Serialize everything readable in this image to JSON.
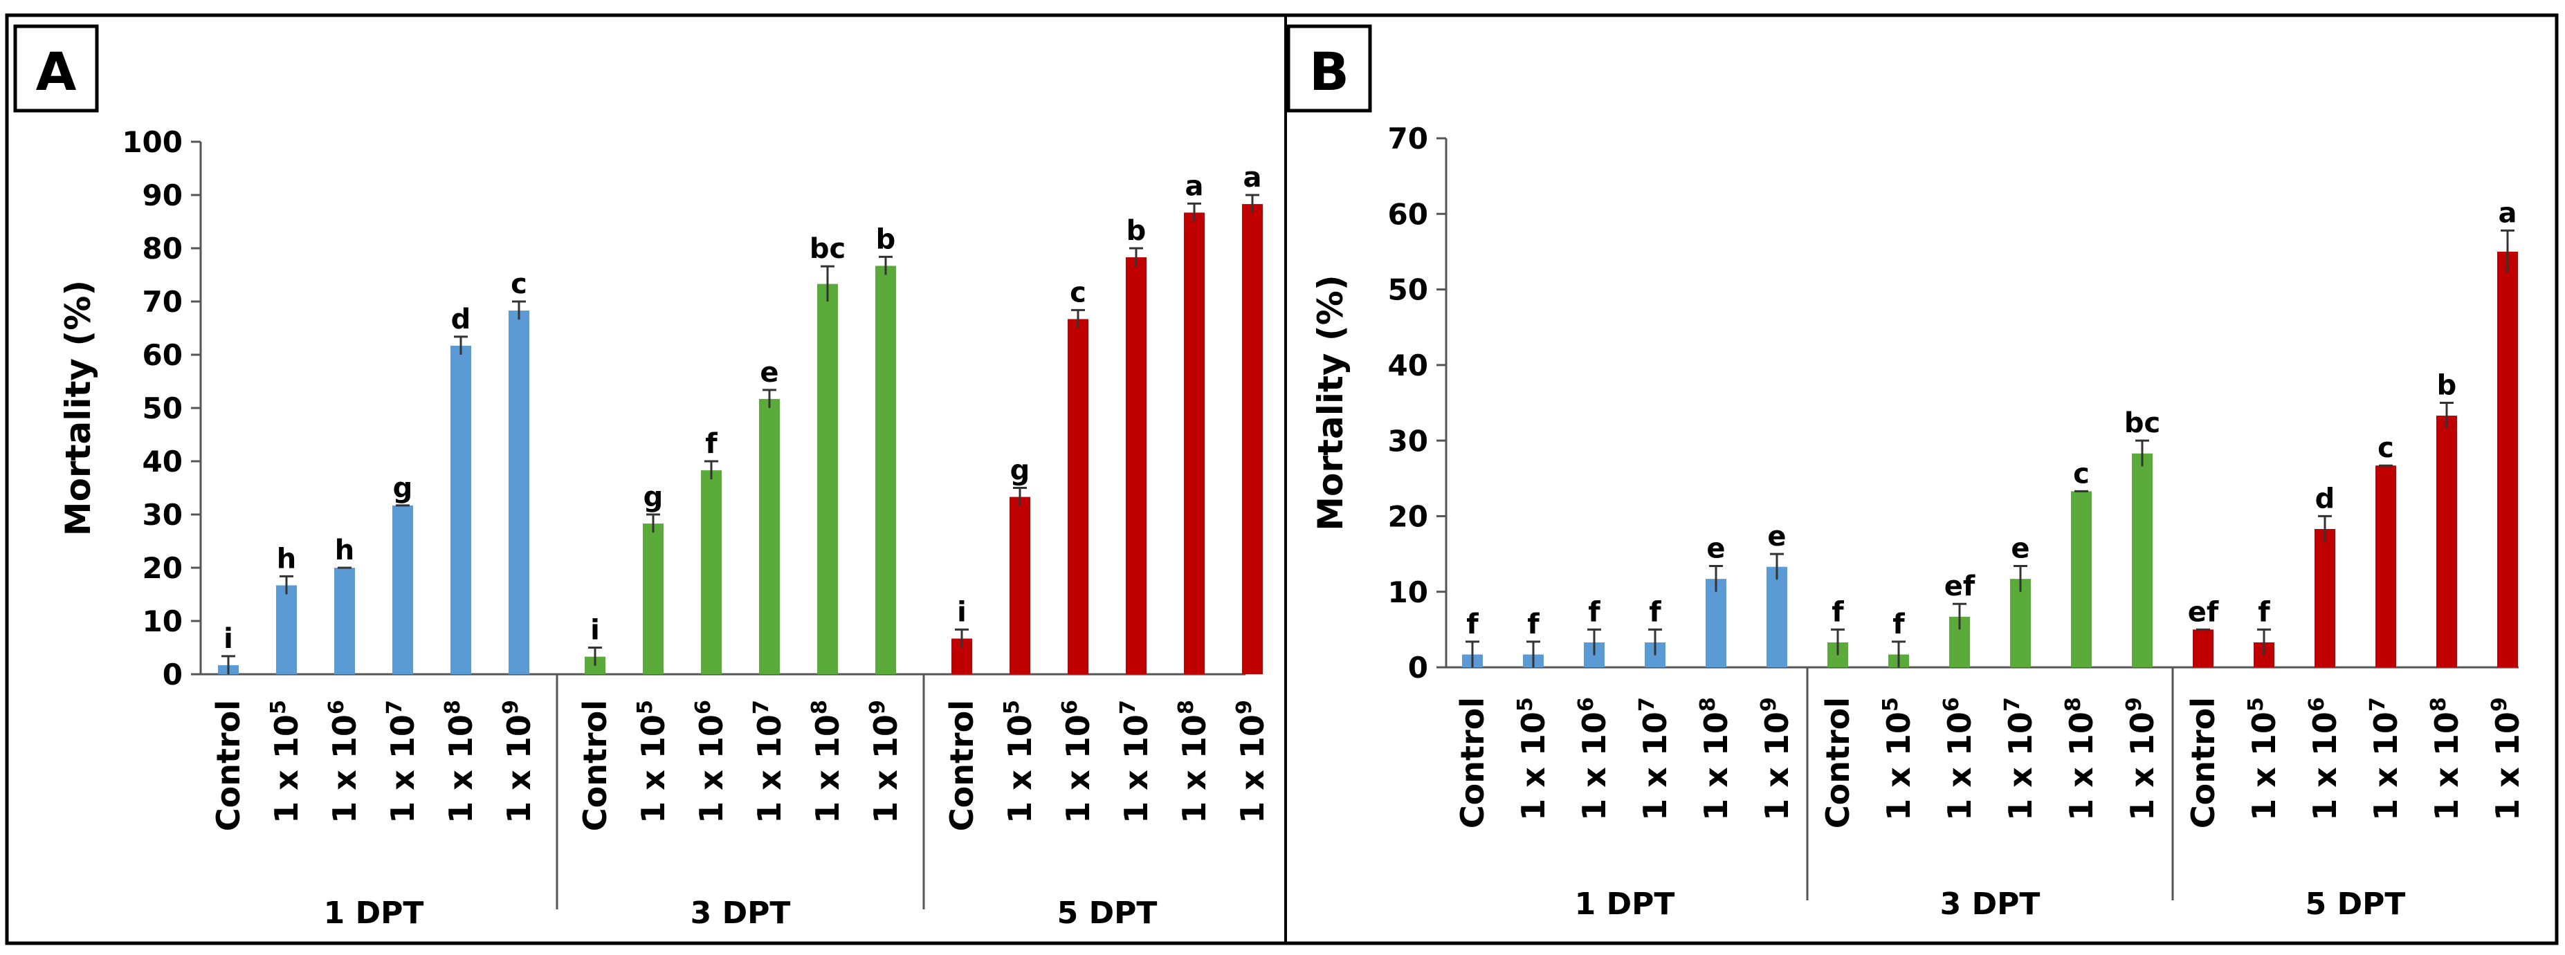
{
  "chart_data": [
    {
      "panel": "A",
      "type": "bar",
      "ylabel": "Mortality (%)",
      "ylim": [
        0,
        100
      ],
      "yticks": [
        0,
        10,
        20,
        30,
        40,
        50,
        60,
        70,
        80,
        90,
        100
      ],
      "categories": [
        "Control",
        "1 x 10^5",
        "1 x 10^6",
        "1 x 10^7",
        "1 x 10^8",
        "1 x 10^9"
      ],
      "groups": [
        {
          "name": "1 DPT",
          "color": "#5b9bd5",
          "values": [
            1.7,
            16.7,
            20.0,
            31.7,
            61.7,
            68.3
          ],
          "errors": [
            1.7,
            1.7,
            0.0,
            0.0,
            1.7,
            1.7
          ],
          "letters": [
            "i",
            "h",
            "h",
            "g",
            "d",
            "c"
          ]
        },
        {
          "name": "3 DPT",
          "color": "#5aab3a",
          "values": [
            3.3,
            28.3,
            38.3,
            51.7,
            73.3,
            76.7
          ],
          "errors": [
            1.7,
            1.7,
            1.7,
            1.7,
            3.3,
            1.7
          ],
          "letters": [
            "i",
            "g",
            "f",
            "e",
            "bc",
            "b"
          ]
        },
        {
          "name": "5 DPT",
          "color": "#c00000",
          "values": [
            6.7,
            33.3,
            66.7,
            78.3,
            86.7,
            88.3
          ],
          "errors": [
            1.7,
            1.7,
            1.7,
            1.7,
            1.7,
            1.7
          ],
          "letters": [
            "i",
            "g",
            "c",
            "b",
            "a",
            "a"
          ]
        }
      ]
    },
    {
      "panel": "B",
      "type": "bar",
      "ylabel": "Mortality (%)",
      "ylim": [
        0,
        70
      ],
      "yticks": [
        0,
        10,
        20,
        30,
        40,
        50,
        60,
        70
      ],
      "categories": [
        "Control",
        "1 x 10^5",
        "1 x 10^6",
        "1 x 10^7",
        "1 x 10^8",
        "1 x 10^9"
      ],
      "groups": [
        {
          "name": "1 DPT",
          "color": "#5b9bd5",
          "values": [
            1.7,
            1.7,
            3.3,
            3.3,
            11.7,
            13.3
          ],
          "errors": [
            1.7,
            1.7,
            1.7,
            1.7,
            1.7,
            1.7
          ],
          "letters": [
            "f",
            "f",
            "f",
            "f",
            "e",
            "e"
          ]
        },
        {
          "name": "3 DPT",
          "color": "#5aab3a",
          "values": [
            3.3,
            1.7,
            6.7,
            11.7,
            23.3,
            28.3
          ],
          "errors": [
            1.7,
            1.7,
            1.7,
            1.7,
            0.0,
            1.7
          ],
          "letters": [
            "f",
            "f",
            "ef",
            "e",
            "c",
            "bc"
          ]
        },
        {
          "name": "5 DPT",
          "color": "#c00000",
          "values": [
            5.0,
            3.3,
            18.3,
            26.7,
            33.3,
            55.0
          ],
          "errors": [
            0.0,
            1.7,
            1.7,
            0.0,
            1.7,
            2.8
          ],
          "letters": [
            "ef",
            "f",
            "d",
            "c",
            "b",
            "a"
          ]
        }
      ]
    }
  ]
}
